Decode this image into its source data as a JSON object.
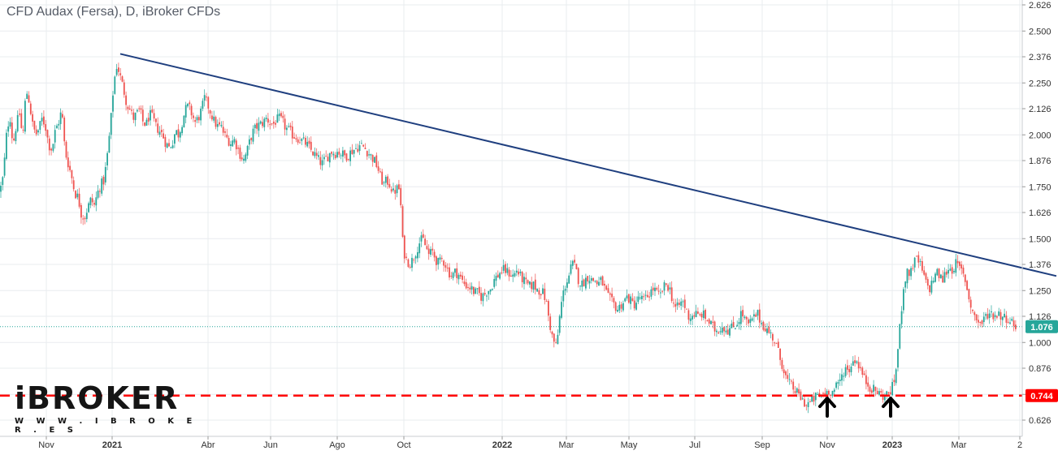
{
  "title": "CFD Audax (Fersa), D, iBroker CFDs",
  "logo": {
    "name": "iBROKER",
    "url": "W W W . I B R O K E R . E S"
  },
  "colors": {
    "up": "#26a69a",
    "down": "#ef5350",
    "trendline": "#1f3f7f",
    "support": "#ff0000",
    "last_badge": "#26a69a",
    "support_badge": "#ff0000",
    "grid": "#e9ecef"
  },
  "chart_data": {
    "type": "candlestick",
    "title": "CFD Audax (Fersa), D, iBroker CFDs",
    "ylim": [
      0.6,
      2.64
    ],
    "y_ticks": [
      "2.626",
      "2.500",
      "2.376",
      "2.250",
      "2.126",
      "2.000",
      "1.876",
      "1.750",
      "1.626",
      "1.500",
      "1.376",
      "1.250",
      "1.126",
      "1.000",
      "0.876",
      "0.750",
      "0.626"
    ],
    "x_ticks": [
      {
        "label": "Nov",
        "bold": false
      },
      {
        "label": "2021",
        "bold": true
      },
      {
        "label": "Abr",
        "bold": false
      },
      {
        "label": "Jun",
        "bold": false
      },
      {
        "label": "Ago",
        "bold": false
      },
      {
        "label": "Oct",
        "bold": false
      },
      {
        "label": "2022",
        "bold": true
      },
      {
        "label": "Mar",
        "bold": false
      },
      {
        "label": "May",
        "bold": false
      },
      {
        "label": "Jul",
        "bold": false
      },
      {
        "label": "Sep",
        "bold": false
      },
      {
        "label": "Nov",
        "bold": false
      },
      {
        "label": "2023",
        "bold": true
      },
      {
        "label": "Mar",
        "bold": false
      },
      {
        "label": "2",
        "bold": false
      }
    ],
    "last_price": "1.076",
    "support_level": "0.744",
    "trendline": {
      "start": {
        "date": "2021-01-01",
        "value": 2.39
      },
      "end": {
        "date": "2023-04-03",
        "value": 1.32
      }
    },
    "arrows": [
      {
        "date": "2022-11",
        "value": 0.7
      },
      {
        "date": "2023-01",
        "value": 0.7
      }
    ],
    "price_path": [
      [
        0,
        1.73
      ],
      [
        4,
        1.8
      ],
      [
        8,
        2.0
      ],
      [
        12,
        2.1
      ],
      [
        16,
        1.95
      ],
      [
        20,
        2.05
      ],
      [
        24,
        2.1
      ],
      [
        28,
        1.98
      ],
      [
        32,
        2.22
      ],
      [
        36,
        2.16
      ],
      [
        40,
        2.05
      ],
      [
        44,
        2.0
      ],
      [
        48,
        2.03
      ],
      [
        52,
        2.08
      ],
      [
        56,
        2.04
      ],
      [
        60,
        1.95
      ],
      [
        64,
        1.93
      ],
      [
        68,
        2.02
      ],
      [
        72,
        2.06
      ],
      [
        76,
        2.12
      ],
      [
        80,
        1.92
      ],
      [
        84,
        1.86
      ],
      [
        88,
        1.8
      ],
      [
        92,
        1.72
      ],
      [
        96,
        1.7
      ],
      [
        100,
        1.62
      ],
      [
        104,
        1.6
      ],
      [
        108,
        1.65
      ],
      [
        112,
        1.69
      ],
      [
        116,
        1.66
      ],
      [
        120,
        1.72
      ],
      [
        124,
        1.76
      ],
      [
        128,
        1.78
      ],
      [
        132,
        1.9
      ],
      [
        136,
        2.05
      ],
      [
        140,
        2.25
      ],
      [
        144,
        2.34
      ],
      [
        148,
        2.28
      ],
      [
        152,
        2.22
      ],
      [
        156,
        2.15
      ],
      [
        160,
        2.12
      ],
      [
        164,
        2.08
      ],
      [
        168,
        2.1
      ],
      [
        172,
        2.12
      ],
      [
        176,
        2.06
      ],
      [
        180,
        2.05
      ],
      [
        184,
        2.1
      ],
      [
        188,
        2.08
      ],
      [
        192,
        2.04
      ],
      [
        196,
        2.02
      ],
      [
        200,
        2.0
      ],
      [
        204,
        1.96
      ],
      [
        208,
        1.94
      ],
      [
        212,
        1.96
      ],
      [
        216,
        2.02
      ],
      [
        220,
        2.0
      ],
      [
        224,
        2.06
      ],
      [
        228,
        2.12
      ],
      [
        232,
        2.14
      ],
      [
        236,
        2.1
      ],
      [
        240,
        2.06
      ],
      [
        244,
        2.08
      ],
      [
        248,
        2.12
      ],
      [
        252,
        2.18
      ],
      [
        256,
        2.14
      ],
      [
        260,
        2.1
      ],
      [
        264,
        2.06
      ],
      [
        268,
        2.04
      ],
      [
        272,
        2.04
      ],
      [
        276,
        2.0
      ],
      [
        280,
        1.98
      ],
      [
        284,
        1.96
      ],
      [
        288,
        1.98
      ],
      [
        292,
        1.94
      ],
      [
        296,
        1.9
      ],
      [
        300,
        1.88
      ],
      [
        304,
        1.92
      ],
      [
        308,
        1.98
      ],
      [
        312,
        2.02
      ],
      [
        316,
        2.04
      ],
      [
        320,
        2.05
      ],
      [
        324,
        2.06
      ],
      [
        328,
        2.08
      ],
      [
        332,
        2.06
      ],
      [
        336,
        2.05
      ],
      [
        340,
        2.07
      ],
      [
        344,
        2.08
      ],
      [
        348,
        2.06
      ],
      [
        352,
        2.03
      ],
      [
        356,
        2.02
      ],
      [
        360,
        2.0
      ],
      [
        364,
        1.99
      ],
      [
        368,
        1.98
      ],
      [
        372,
        1.97
      ],
      [
        376,
        1.96
      ],
      [
        380,
        1.94
      ],
      [
        384,
        1.92
      ],
      [
        388,
        1.9
      ],
      [
        392,
        1.88
      ],
      [
        396,
        1.86
      ],
      [
        400,
        1.88
      ],
      [
        404,
        1.9
      ],
      [
        408,
        1.92
      ],
      [
        412,
        1.91
      ],
      [
        416,
        1.92
      ],
      [
        420,
        1.91
      ],
      [
        424,
        1.9
      ],
      [
        428,
        1.9
      ],
      [
        432,
        1.92
      ],
      [
        436,
        1.93
      ],
      [
        440,
        1.94
      ],
      [
        444,
        1.95
      ],
      [
        448,
        1.94
      ],
      [
        452,
        1.92
      ],
      [
        456,
        1.9
      ],
      [
        460,
        1.88
      ],
      [
        464,
        1.85
      ],
      [
        468,
        1.8
      ],
      [
        472,
        1.76
      ],
      [
        476,
        1.78
      ],
      [
        480,
        1.76
      ],
      [
        484,
        1.72
      ],
      [
        488,
        1.74
      ],
      [
        492,
        1.74
      ],
      [
        494,
        1.6
      ],
      [
        496,
        1.45
      ],
      [
        500,
        1.4
      ],
      [
        504,
        1.38
      ],
      [
        508,
        1.4
      ],
      [
        512,
        1.44
      ],
      [
        516,
        1.48
      ],
      [
        520,
        1.5
      ],
      [
        524,
        1.46
      ],
      [
        528,
        1.42
      ],
      [
        532,
        1.44
      ],
      [
        536,
        1.4
      ],
      [
        540,
        1.38
      ],
      [
        544,
        1.4
      ],
      [
        548,
        1.38
      ],
      [
        552,
        1.34
      ],
      [
        556,
        1.32
      ],
      [
        560,
        1.34
      ],
      [
        564,
        1.33
      ],
      [
        568,
        1.3
      ],
      [
        572,
        1.28
      ],
      [
        576,
        1.27
      ],
      [
        580,
        1.26
      ],
      [
        584,
        1.24
      ],
      [
        588,
        1.24
      ],
      [
        592,
        1.22
      ],
      [
        596,
        1.23
      ],
      [
        600,
        1.25
      ],
      [
        604,
        1.26
      ],
      [
        608,
        1.3
      ],
      [
        612,
        1.32
      ],
      [
        616,
        1.34
      ],
      [
        620,
        1.35
      ],
      [
        624,
        1.34
      ],
      [
        628,
        1.33
      ],
      [
        632,
        1.32
      ],
      [
        636,
        1.35
      ],
      [
        640,
        1.32
      ],
      [
        644,
        1.3
      ],
      [
        648,
        1.28
      ],
      [
        652,
        1.27
      ],
      [
        656,
        1.28
      ],
      [
        660,
        1.26
      ],
      [
        664,
        1.25
      ],
      [
        668,
        1.24
      ],
      [
        672,
        1.2
      ],
      [
        676,
        1.1
      ],
      [
        680,
        1.02
      ],
      [
        684,
        0.98
      ],
      [
        686,
        1.02
      ],
      [
        688,
        1.1
      ],
      [
        692,
        1.22
      ],
      [
        696,
        1.28
      ],
      [
        700,
        1.32
      ],
      [
        704,
        1.38
      ],
      [
        708,
        1.36
      ],
      [
        712,
        1.3
      ],
      [
        716,
        1.28
      ],
      [
        720,
        1.3
      ],
      [
        724,
        1.32
      ],
      [
        728,
        1.3
      ],
      [
        732,
        1.3
      ],
      [
        736,
        1.28
      ],
      [
        740,
        1.3
      ],
      [
        744,
        1.26
      ],
      [
        748,
        1.22
      ],
      [
        752,
        1.2
      ],
      [
        756,
        1.18
      ],
      [
        760,
        1.16
      ],
      [
        764,
        1.18
      ],
      [
        768,
        1.2
      ],
      [
        772,
        1.22
      ],
      [
        776,
        1.2
      ],
      [
        780,
        1.18
      ],
      [
        784,
        1.2
      ],
      [
        788,
        1.22
      ],
      [
        792,
        1.2
      ],
      [
        796,
        1.22
      ],
      [
        800,
        1.24
      ],
      [
        804,
        1.26
      ],
      [
        808,
        1.24
      ],
      [
        812,
        1.22
      ],
      [
        816,
        1.26
      ],
      [
        820,
        1.28
      ],
      [
        824,
        1.26
      ],
      [
        828,
        1.2
      ],
      [
        832,
        1.16
      ],
      [
        836,
        1.18
      ],
      [
        840,
        1.2
      ],
      [
        844,
        1.16
      ],
      [
        848,
        1.12
      ],
      [
        852,
        1.13
      ],
      [
        856,
        1.14
      ],
      [
        860,
        1.12
      ],
      [
        864,
        1.14
      ],
      [
        868,
        1.12
      ],
      [
        872,
        1.1
      ],
      [
        876,
        1.08
      ],
      [
        880,
        1.06
      ],
      [
        884,
        1.06
      ],
      [
        888,
        1.08
      ],
      [
        892,
        1.07
      ],
      [
        896,
        1.06
      ],
      [
        900,
        1.07
      ],
      [
        904,
        1.08
      ],
      [
        908,
        1.1
      ],
      [
        912,
        1.14
      ],
      [
        916,
        1.12
      ],
      [
        920,
        1.08
      ],
      [
        924,
        1.1
      ],
      [
        928,
        1.12
      ],
      [
        932,
        1.14
      ],
      [
        936,
        1.1
      ],
      [
        940,
        1.08
      ],
      [
        944,
        1.06
      ],
      [
        948,
        1.04
      ],
      [
        952,
        1.02
      ],
      [
        956,
        0.98
      ],
      [
        960,
        0.92
      ],
      [
        964,
        0.88
      ],
      [
        968,
        0.82
      ],
      [
        972,
        0.8
      ],
      [
        976,
        0.78
      ],
      [
        980,
        0.76
      ],
      [
        984,
        0.74
      ],
      [
        988,
        0.72
      ],
      [
        992,
        0.7
      ],
      [
        996,
        0.71
      ],
      [
        1000,
        0.72
      ],
      [
        1004,
        0.74
      ],
      [
        1008,
        0.74
      ],
      [
        1012,
        0.75
      ],
      [
        1016,
        0.76
      ],
      [
        1020,
        0.77
      ],
      [
        1024,
        0.76
      ],
      [
        1028,
        0.78
      ],
      [
        1032,
        0.8
      ],
      [
        1036,
        0.84
      ],
      [
        1040,
        0.88
      ],
      [
        1044,
        0.86
      ],
      [
        1048,
        0.9
      ],
      [
        1052,
        0.92
      ],
      [
        1056,
        0.9
      ],
      [
        1060,
        0.86
      ],
      [
        1064,
        0.82
      ],
      [
        1068,
        0.8
      ],
      [
        1072,
        0.78
      ],
      [
        1076,
        0.77
      ],
      [
        1080,
        0.76
      ],
      [
        1084,
        0.75
      ],
      [
        1088,
        0.74
      ],
      [
        1092,
        0.75
      ],
      [
        1096,
        0.77
      ],
      [
        1100,
        0.8
      ],
      [
        1104,
        0.92
      ],
      [
        1108,
        1.1
      ],
      [
        1112,
        1.28
      ],
      [
        1116,
        1.33
      ],
      [
        1120,
        1.34
      ],
      [
        1124,
        1.38
      ],
      [
        1128,
        1.4
      ],
      [
        1132,
        1.38
      ],
      [
        1136,
        1.33
      ],
      [
        1140,
        1.28
      ],
      [
        1144,
        1.26
      ],
      [
        1148,
        1.3
      ],
      [
        1152,
        1.34
      ],
      [
        1156,
        1.32
      ],
      [
        1160,
        1.3
      ],
      [
        1164,
        1.34
      ],
      [
        1168,
        1.36
      ],
      [
        1172,
        1.35
      ],
      [
        1176,
        1.38
      ],
      [
        1180,
        1.36
      ],
      [
        1184,
        1.34
      ],
      [
        1188,
        1.3
      ],
      [
        1192,
        1.22
      ],
      [
        1196,
        1.16
      ],
      [
        1200,
        1.12
      ],
      [
        1204,
        1.1
      ],
      [
        1208,
        1.09
      ],
      [
        1212,
        1.12
      ],
      [
        1216,
        1.14
      ],
      [
        1220,
        1.14
      ],
      [
        1224,
        1.13
      ],
      [
        1228,
        1.14
      ],
      [
        1232,
        1.13
      ],
      [
        1236,
        1.12
      ],
      [
        1240,
        1.12
      ],
      [
        1244,
        1.1
      ],
      [
        1248,
        1.09
      ],
      [
        1252,
        1.076
      ]
    ]
  }
}
